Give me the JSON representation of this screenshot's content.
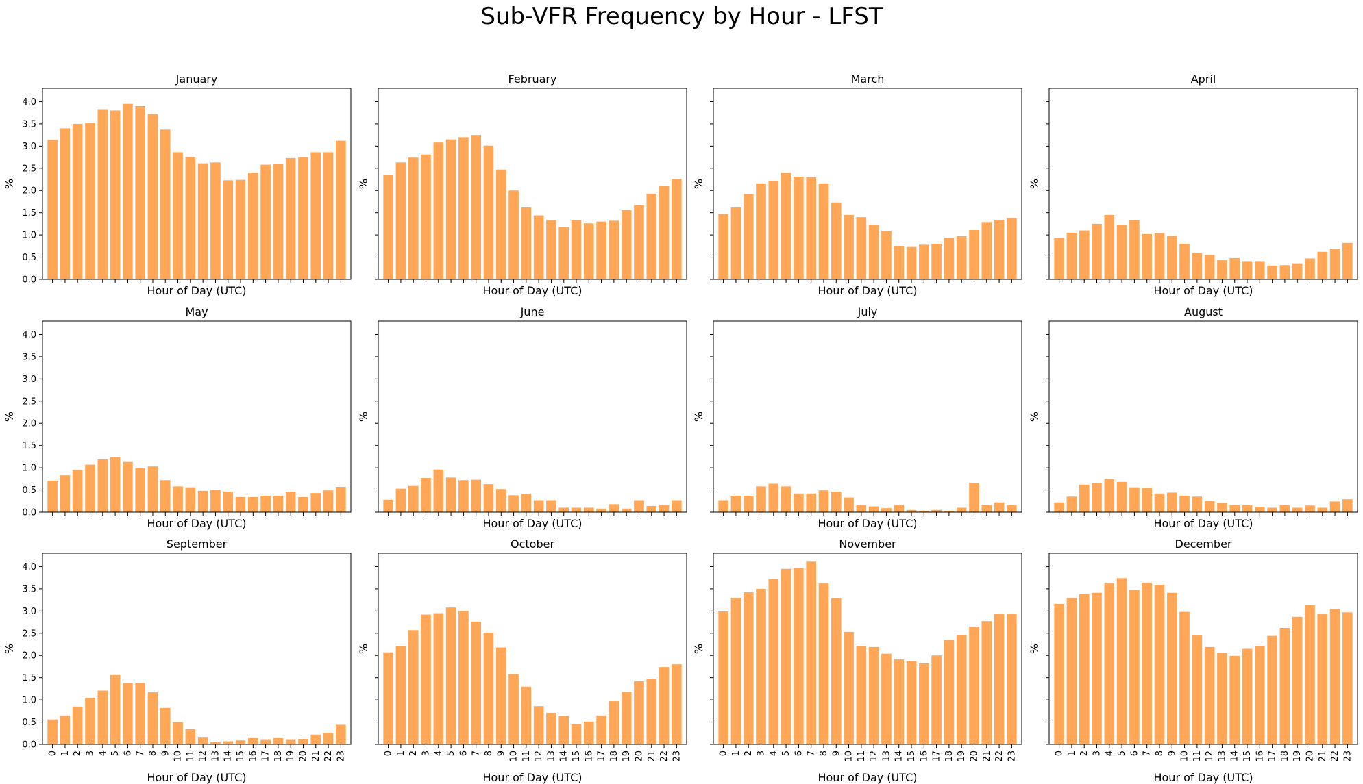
{
  "chart_data": {
    "type": "bar",
    "title": "Sub-VFR Frequency by Hour - LFST",
    "xlabel": "Hour of Day (UTC)",
    "ylabel": "%",
    "ylim": [
      0,
      4.3
    ],
    "yticks": [
      "0.0",
      "0.5",
      "1.0",
      "1.5",
      "2.0",
      "2.5",
      "3.0",
      "3.5",
      "4.0"
    ],
    "categories": [
      "0",
      "1",
      "2",
      "3",
      "4",
      "5",
      "6",
      "7",
      "8",
      "9",
      "10",
      "11",
      "12",
      "13",
      "14",
      "15",
      "16",
      "17",
      "18",
      "19",
      "20",
      "21",
      "22",
      "23"
    ],
    "bar_color": "#FFA756",
    "grid": false,
    "layout": "3x4 grid, shared axes; x tick labels only on bottom row, y tick labels only on left column",
    "panels": [
      {
        "name": "January",
        "values": [
          3.14,
          3.4,
          3.5,
          3.52,
          3.83,
          3.8,
          3.95,
          3.9,
          3.72,
          3.37,
          2.86,
          2.76,
          2.61,
          2.63,
          2.23,
          2.24,
          2.4,
          2.58,
          2.59,
          2.73,
          2.75,
          2.86,
          2.86,
          3.12
        ]
      },
      {
        "name": "February",
        "values": [
          2.35,
          2.63,
          2.74,
          2.81,
          3.08,
          3.15,
          3.2,
          3.25,
          3.01,
          2.47,
          2.0,
          1.62,
          1.44,
          1.34,
          1.18,
          1.33,
          1.26,
          1.3,
          1.32,
          1.56,
          1.67,
          1.93,
          2.1,
          2.26
        ]
      },
      {
        "name": "March",
        "values": [
          1.47,
          1.62,
          1.92,
          2.16,
          2.22,
          2.4,
          2.31,
          2.3,
          2.16,
          1.73,
          1.45,
          1.4,
          1.23,
          1.09,
          0.75,
          0.73,
          0.78,
          0.8,
          0.94,
          0.97,
          1.11,
          1.29,
          1.34,
          1.38
        ]
      },
      {
        "name": "April",
        "values": [
          0.94,
          1.05,
          1.1,
          1.25,
          1.45,
          1.23,
          1.33,
          1.02,
          1.04,
          0.98,
          0.8,
          0.59,
          0.55,
          0.43,
          0.48,
          0.41,
          0.41,
          0.31,
          0.32,
          0.36,
          0.47,
          0.62,
          0.69,
          0.82
        ]
      },
      {
        "name": "May",
        "values": [
          0.71,
          0.83,
          0.95,
          1.07,
          1.19,
          1.24,
          1.13,
          0.99,
          1.03,
          0.72,
          0.58,
          0.56,
          0.48,
          0.5,
          0.46,
          0.34,
          0.34,
          0.37,
          0.37,
          0.46,
          0.34,
          0.43,
          0.49,
          0.57
        ]
      },
      {
        "name": "June",
        "values": [
          0.28,
          0.53,
          0.59,
          0.77,
          0.96,
          0.78,
          0.72,
          0.73,
          0.63,
          0.52,
          0.38,
          0.41,
          0.27,
          0.27,
          0.1,
          0.1,
          0.1,
          0.08,
          0.18,
          0.08,
          0.27,
          0.14,
          0.17,
          0.27
        ]
      },
      {
        "name": "July",
        "values": [
          0.27,
          0.37,
          0.37,
          0.58,
          0.64,
          0.58,
          0.42,
          0.42,
          0.49,
          0.46,
          0.33,
          0.17,
          0.13,
          0.09,
          0.17,
          0.05,
          0.03,
          0.05,
          0.03,
          0.1,
          0.66,
          0.16,
          0.22,
          0.16
        ]
      },
      {
        "name": "August",
        "values": [
          0.22,
          0.35,
          0.62,
          0.66,
          0.74,
          0.68,
          0.56,
          0.55,
          0.42,
          0.44,
          0.37,
          0.35,
          0.25,
          0.21,
          0.16,
          0.16,
          0.12,
          0.1,
          0.16,
          0.1,
          0.15,
          0.1,
          0.24,
          0.29
        ]
      },
      {
        "name": "September",
        "values": [
          0.56,
          0.65,
          0.85,
          1.05,
          1.21,
          1.56,
          1.38,
          1.38,
          1.17,
          0.82,
          0.5,
          0.34,
          0.15,
          0.05,
          0.07,
          0.09,
          0.14,
          0.1,
          0.14,
          0.1,
          0.12,
          0.22,
          0.26,
          0.44
        ]
      },
      {
        "name": "October",
        "values": [
          2.07,
          2.22,
          2.57,
          2.92,
          2.95,
          3.08,
          3.0,
          2.76,
          2.51,
          2.18,
          1.58,
          1.3,
          0.86,
          0.71,
          0.64,
          0.45,
          0.51,
          0.65,
          0.97,
          1.18,
          1.42,
          1.48,
          1.74,
          1.8
        ]
      },
      {
        "name": "November",
        "values": [
          2.99,
          3.3,
          3.42,
          3.5,
          3.72,
          3.95,
          3.97,
          4.11,
          3.62,
          3.29,
          2.53,
          2.22,
          2.19,
          2.04,
          1.91,
          1.87,
          1.82,
          2.0,
          2.35,
          2.46,
          2.65,
          2.77,
          2.94,
          2.94
        ]
      },
      {
        "name": "December",
        "values": [
          3.16,
          3.3,
          3.38,
          3.41,
          3.62,
          3.74,
          3.47,
          3.64,
          3.59,
          3.41,
          2.98,
          2.45,
          2.19,
          2.06,
          1.99,
          2.15,
          2.22,
          2.44,
          2.62,
          2.87,
          3.13,
          2.94,
          3.05,
          2.97
        ]
      }
    ]
  }
}
